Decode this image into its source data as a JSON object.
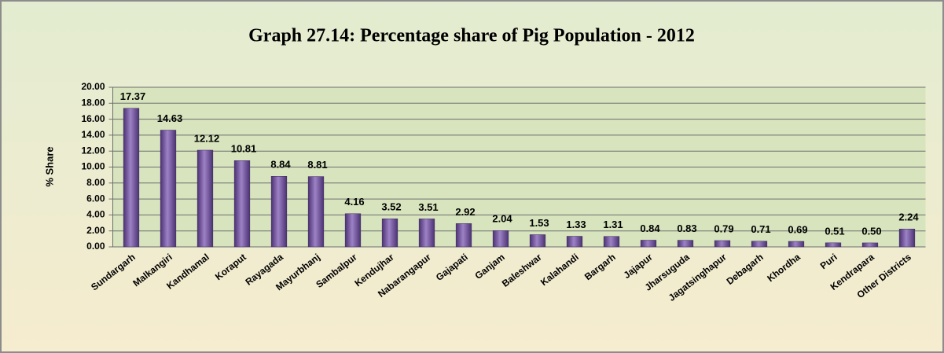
{
  "chart_data": {
    "type": "bar",
    "title": "Graph 27.14: Percentage share of Pig Population - 2012",
    "y_label": "% Share",
    "categories": [
      "Sundargarh",
      "Malkangiri",
      "Kandhamal",
      "Koraput",
      "Rayagada",
      "Mayurbhanj",
      "Sambalpur",
      "Kendujhar",
      "Nabarangapur",
      "Gajapati",
      "Ganjam",
      "Baleshwar",
      "Kalahandi",
      "Bargarh",
      "Jajapur",
      "Jharsuguda",
      "Jagatsinghapur",
      "Debagarh",
      "Khordha",
      "Puri",
      "Kendrapara",
      "Other Districts"
    ],
    "values": [
      17.37,
      14.63,
      12.12,
      10.81,
      8.84,
      8.81,
      4.16,
      3.52,
      3.51,
      2.92,
      2.04,
      1.53,
      1.33,
      1.31,
      0.84,
      0.83,
      0.79,
      0.71,
      0.69,
      0.51,
      0.5,
      2.24
    ],
    "value_labels": [
      "17.37",
      "14.63",
      "12.12",
      "10.81",
      "8.84",
      "8.81",
      "4.16",
      "3.52",
      "3.51",
      "2.92",
      "2.04",
      "1.53",
      "1.33",
      "1.31",
      "0.84",
      "0.83",
      "0.79",
      "0.71",
      "0.69",
      "0.51",
      "0.50",
      "2.24"
    ],
    "color": "#7b5ea7",
    "ylim": [
      0,
      20
    ],
    "yticks": [
      {
        "value": 0,
        "label": "0.00"
      },
      {
        "value": 2,
        "label": "2.00"
      },
      {
        "value": 4,
        "label": "4.00"
      },
      {
        "value": 6,
        "label": "6.00"
      },
      {
        "value": 8,
        "label": "8.00"
      },
      {
        "value": 10,
        "label": "10.00"
      },
      {
        "value": 12,
        "label": "12.00"
      },
      {
        "value": 14,
        "label": "14.00"
      },
      {
        "value": 16,
        "label": "16.00"
      },
      {
        "value": 18,
        "label": "18.00"
      },
      {
        "value": 20,
        "label": "20.00"
      }
    ],
    "grid": true
  }
}
